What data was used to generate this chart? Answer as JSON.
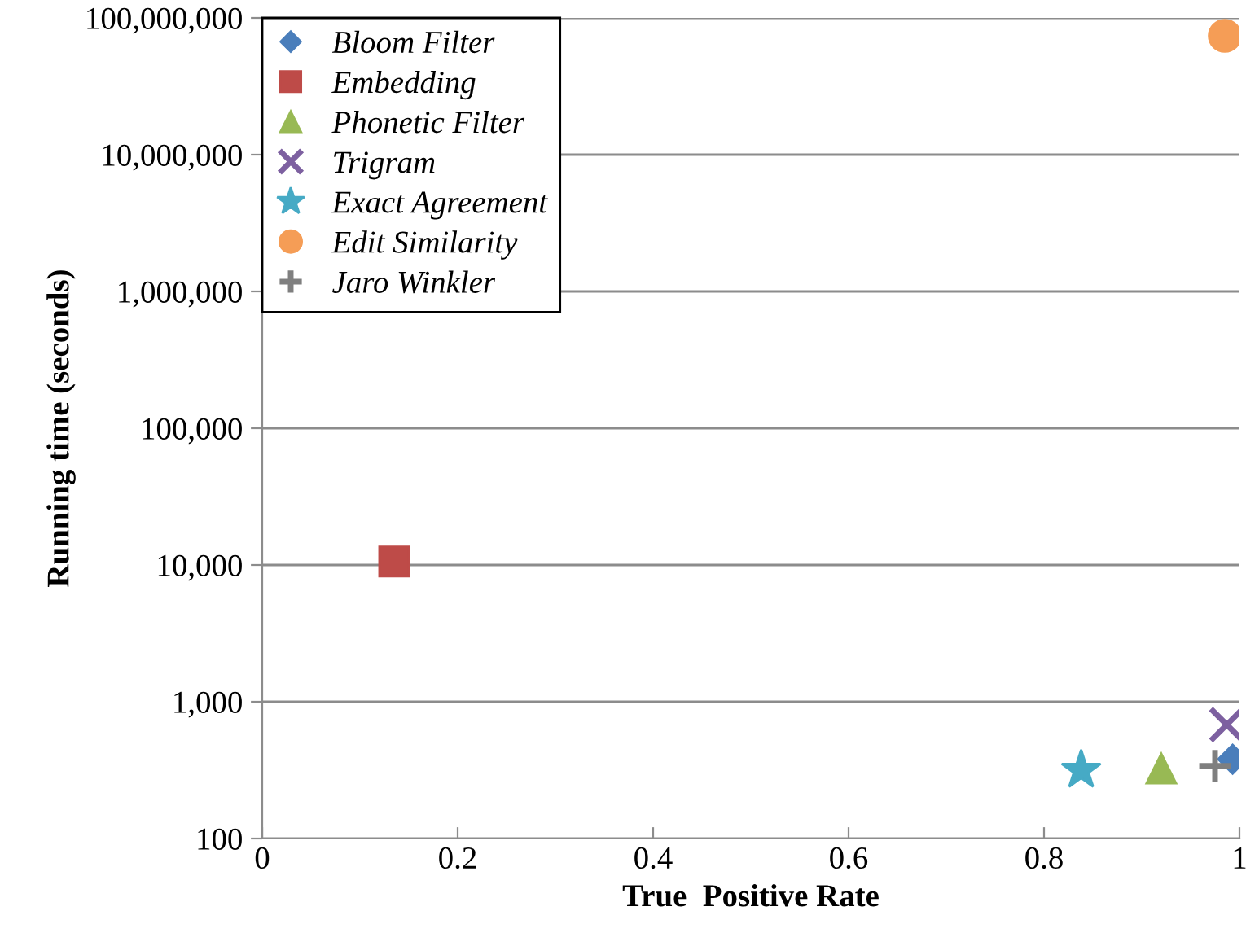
{
  "chart_data": {
    "type": "scatter",
    "xlabel": "True  Positive Rate",
    "ylabel": "Running time (seconds)",
    "log": "y",
    "xlim": [
      0,
      1
    ],
    "xticks": [
      0,
      0.2,
      0.4,
      0.6,
      0.8,
      1
    ],
    "ylim": [
      100,
      100000000
    ],
    "yticks": [
      {
        "value": 100,
        "label": "100"
      },
      {
        "value": 1000,
        "label": "1,000"
      },
      {
        "value": 10000,
        "label": "10,000"
      },
      {
        "value": 100000,
        "label": "100,000"
      },
      {
        "value": 1000000,
        "label": "1,000,000"
      },
      {
        "value": 10000000,
        "label": "10,000,000"
      },
      {
        "value": 100000000,
        "label": "100,000,000"
      }
    ],
    "grid": "y",
    "legend": "top left",
    "series": [
      {
        "name": "Bloom Filter",
        "color": "#4a7ebb",
        "marker": "diamond",
        "x": [
          0.993
        ],
        "values": [
          380
        ]
      },
      {
        "name": "Embedding",
        "color": "#be4b48",
        "marker": "square",
        "x": [
          0.135
        ],
        "values": [
          10600
        ]
      },
      {
        "name": "Phonetic Filter",
        "color": "#98b954",
        "marker": "triangle",
        "x": [
          0.92
        ],
        "values": [
          325
        ]
      },
      {
        "name": "Trigram",
        "color": "#7d60a0",
        "marker": "cross",
        "x": [
          0.987
        ],
        "values": [
          680
        ]
      },
      {
        "name": "Exact Agreement",
        "color": "#46aac5",
        "marker": "star",
        "x": [
          0.838
        ],
        "values": [
          316
        ]
      },
      {
        "name": "Edit Similarity",
        "color": "#f59d56",
        "marker": "circle",
        "x": [
          0.985
        ],
        "values": [
          74000000
        ]
      },
      {
        "name": "Jaro Winkler",
        "color": "#7f7f7f",
        "marker": "plus",
        "x": [
          0.975
        ],
        "values": [
          340
        ]
      }
    ]
  }
}
